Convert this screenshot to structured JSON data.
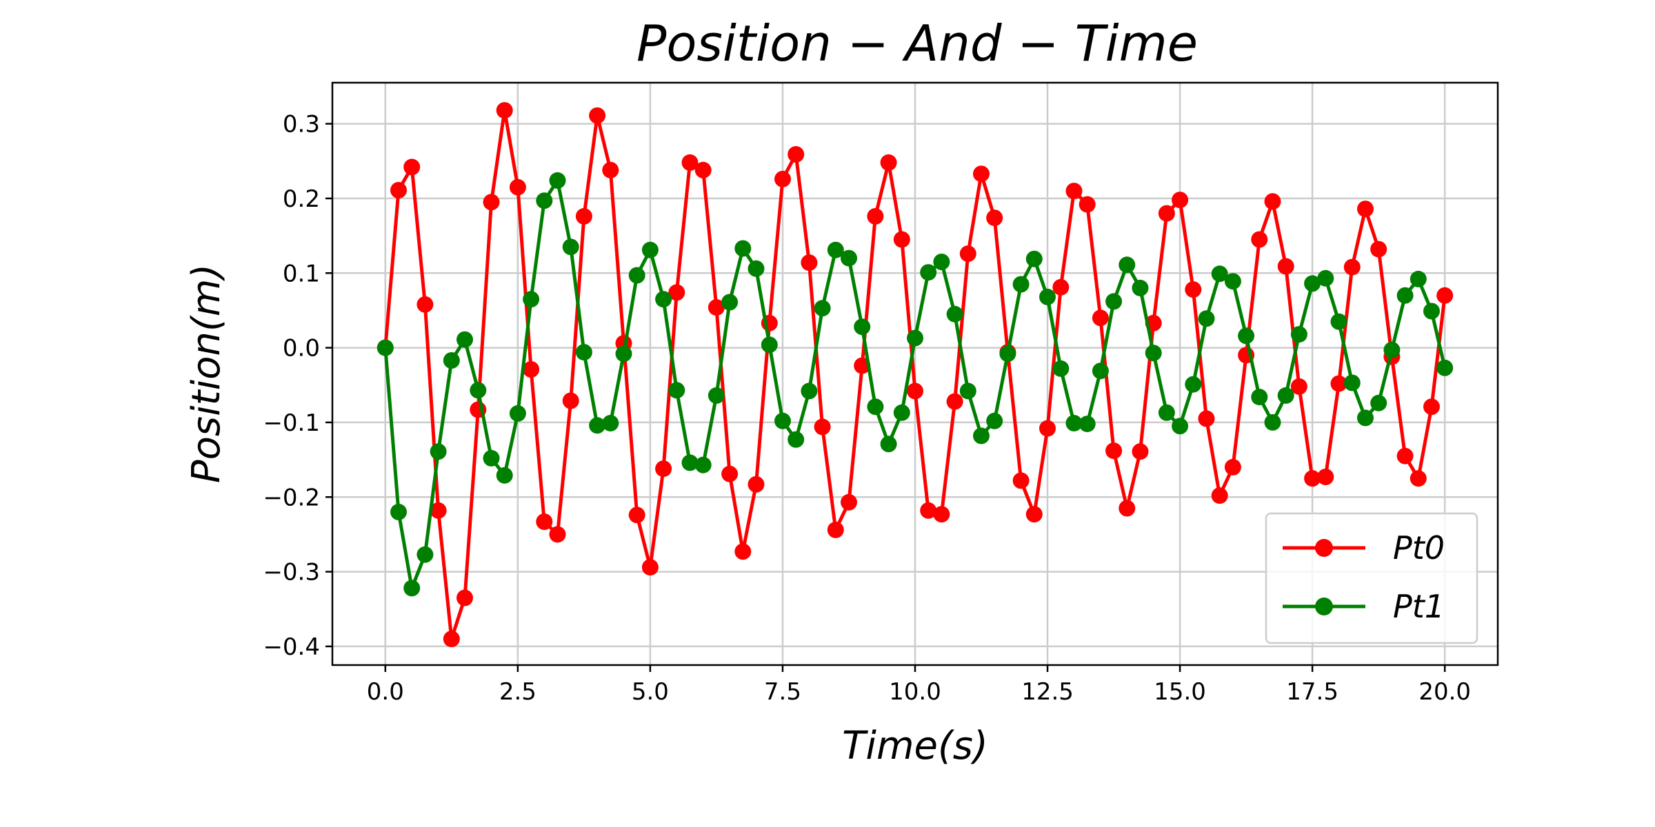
{
  "chart_data": {
    "type": "line",
    "title": "Position − And − Time",
    "xlabel": "Time(s)",
    "ylabel": "Position(m)",
    "xlim": [
      -1.0,
      21.0
    ],
    "ylim": [
      -0.425,
      0.355
    ],
    "grid": true,
    "legend_position": "bottom-right",
    "x_ticks": [
      0.0,
      2.5,
      5.0,
      7.5,
      10.0,
      12.5,
      15.0,
      17.5,
      20.0
    ],
    "x_tick_labels": [
      "0.0",
      "2.5",
      "5.0",
      "7.5",
      "10.0",
      "12.5",
      "15.0",
      "17.5",
      "20.0"
    ],
    "y_ticks": [
      -0.4,
      -0.3,
      -0.2,
      -0.1,
      0.0,
      0.1,
      0.2,
      0.3
    ],
    "y_tick_labels": [
      "−0.4",
      "−0.3",
      "−0.2",
      "−0.1",
      "0.0",
      "0.1",
      "0.2",
      "0.3"
    ],
    "x": [
      0.0,
      0.25,
      0.5,
      0.75,
      1.0,
      1.25,
      1.5,
      1.75,
      2.0,
      2.25,
      2.5,
      2.75,
      3.0,
      3.25,
      3.5,
      3.75,
      4.0,
      4.25,
      4.5,
      4.75,
      5.0,
      5.25,
      5.5,
      5.75,
      6.0,
      6.25,
      6.5,
      6.75,
      7.0,
      7.25,
      7.5,
      7.75,
      8.0,
      8.25,
      8.5,
      8.75,
      9.0,
      9.25,
      9.5,
      9.75,
      10.0,
      10.25,
      10.5,
      10.75,
      11.0,
      11.25,
      11.5,
      11.75,
      12.0,
      12.25,
      12.5,
      12.75,
      13.0,
      13.25,
      13.5,
      13.75,
      14.0,
      14.25,
      14.5,
      14.75,
      15.0,
      15.25,
      15.5,
      15.75,
      16.0,
      16.25,
      16.5,
      16.75,
      17.0,
      17.25,
      17.5,
      17.75,
      18.0,
      18.25,
      18.5,
      18.75,
      19.0,
      19.25,
      19.5,
      19.75,
      20.0
    ],
    "series": [
      {
        "name": "Pt0",
        "color": "#ff0000",
        "values": [
          0.0,
          0.211,
          0.242,
          0.058,
          -0.218,
          -0.39,
          -0.335,
          -0.083,
          0.195,
          0.318,
          0.215,
          -0.029,
          -0.233,
          -0.25,
          -0.071,
          0.176,
          0.311,
          0.238,
          0.006,
          -0.224,
          -0.294,
          -0.162,
          0.074,
          0.248,
          0.238,
          0.054,
          -0.169,
          -0.273,
          -0.183,
          0.033,
          0.226,
          0.259,
          0.114,
          -0.106,
          -0.244,
          -0.207,
          -0.024,
          0.176,
          0.248,
          0.145,
          -0.058,
          -0.218,
          -0.223,
          -0.072,
          0.126,
          0.233,
          0.174,
          -0.006,
          -0.178,
          -0.223,
          -0.108,
          0.081,
          0.21,
          0.192,
          0.04,
          -0.138,
          -0.215,
          -0.139,
          0.033,
          0.18,
          0.198,
          0.078,
          -0.095,
          -0.198,
          -0.16,
          -0.01,
          0.145,
          0.196,
          0.109,
          -0.052,
          -0.175,
          -0.173,
          -0.048,
          0.108,
          0.186,
          0.132,
          -0.012,
          -0.145,
          -0.175,
          -0.079,
          0.07
        ]
      },
      {
        "name": "Pt1",
        "color": "#008000",
        "values": [
          0.0,
          -0.22,
          -0.322,
          -0.277,
          -0.139,
          -0.017,
          0.011,
          -0.057,
          -0.148,
          -0.171,
          -0.088,
          0.065,
          0.197,
          0.224,
          0.135,
          -0.006,
          -0.104,
          -0.101,
          -0.008,
          0.097,
          0.131,
          0.065,
          -0.057,
          -0.154,
          -0.157,
          -0.064,
          0.061,
          0.133,
          0.106,
          0.004,
          -0.098,
          -0.123,
          -0.058,
          0.053,
          0.131,
          0.12,
          0.028,
          -0.079,
          -0.129,
          -0.087,
          0.013,
          0.101,
          0.115,
          0.045,
          -0.058,
          -0.118,
          -0.098,
          -0.008,
          0.085,
          0.119,
          0.068,
          -0.028,
          -0.101,
          -0.102,
          -0.031,
          0.062,
          0.111,
          0.08,
          -0.007,
          -0.087,
          -0.105,
          -0.049,
          0.039,
          0.099,
          0.089,
          0.016,
          -0.066,
          -0.1,
          -0.064,
          0.018,
          0.086,
          0.093,
          0.035,
          -0.047,
          -0.094,
          -0.074,
          -0.003,
          0.07,
          0.092,
          0.049,
          -0.027
        ]
      }
    ]
  }
}
